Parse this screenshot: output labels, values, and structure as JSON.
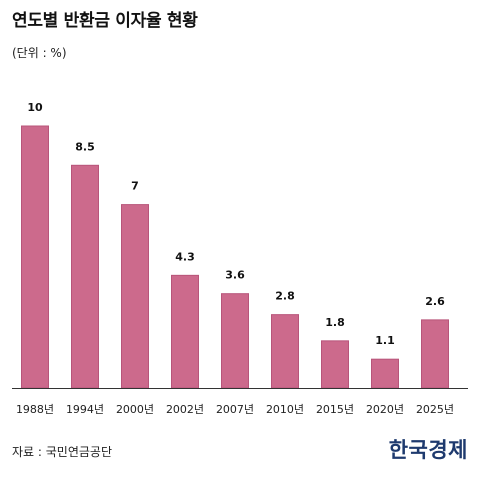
{
  "header": {
    "title": "연도별 반환금 이자율 현황",
    "unit": "(단위 : %)"
  },
  "footer": {
    "source": "자료 : 국민연금공단",
    "logo_text": "한국경제"
  },
  "colors": {
    "bar": "#cc6a8c",
    "bar_border": "#b8557a",
    "baseline": "#333333",
    "logo": "#1e3a6e"
  },
  "chart_data": {
    "type": "bar",
    "categories": [
      "1988년",
      "1994년",
      "2000년",
      "2002년",
      "2007년",
      "2010년",
      "2015년",
      "2020년",
      "2025년"
    ],
    "values": [
      10,
      8.5,
      7,
      4.3,
      3.6,
      2.8,
      1.8,
      1.1,
      2.6
    ],
    "value_labels": [
      "10",
      "8.5",
      "7",
      "4.3",
      "3.6",
      "2.8",
      "1.8",
      "1.1",
      "2.6"
    ],
    "ylim": [
      0,
      10
    ],
    "grid": false,
    "legend": "none"
  }
}
